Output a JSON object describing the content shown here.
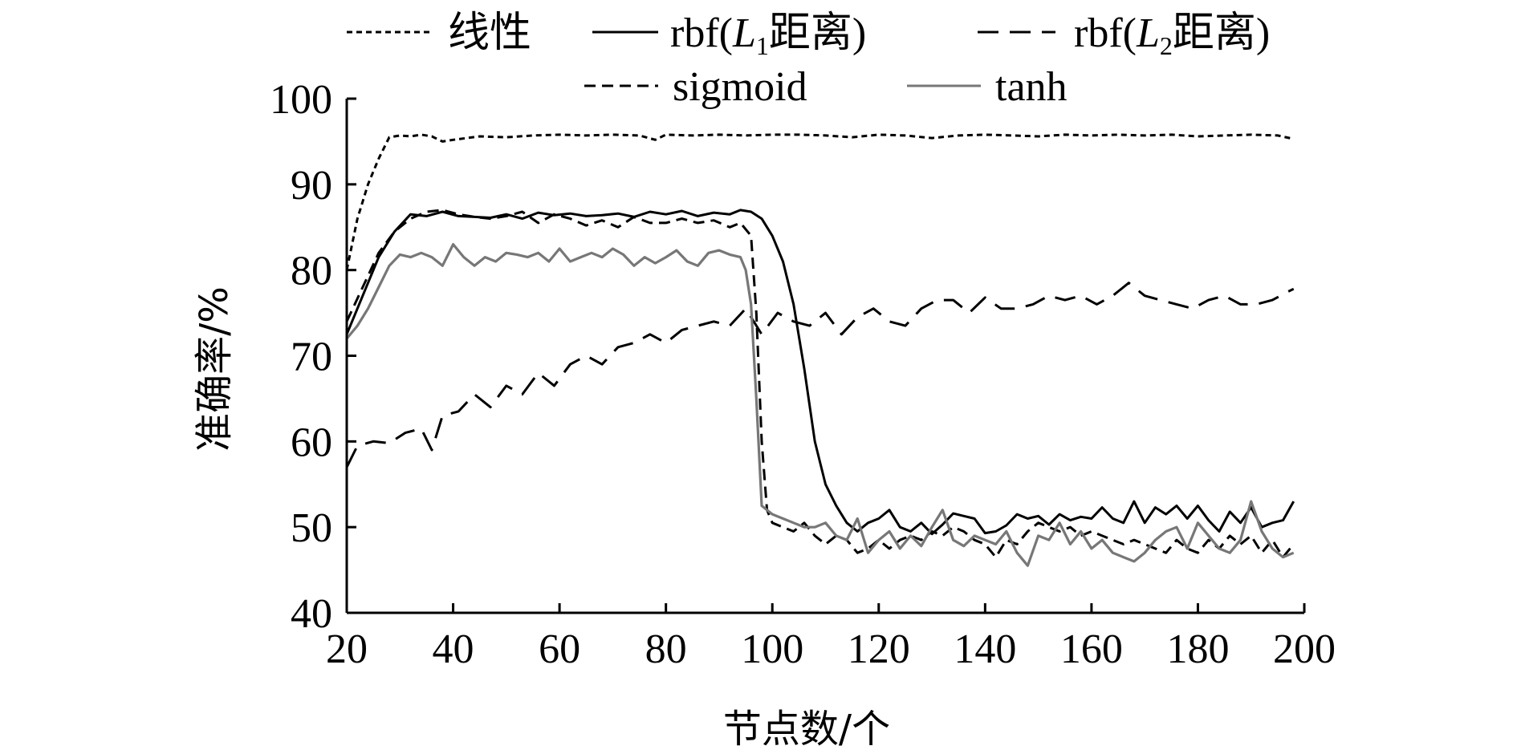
{
  "chart_data": {
    "type": "line",
    "xlabel": "节点数/个",
    "ylabel": "准确率/%",
    "xlim": [
      20,
      200
    ],
    "ylim": [
      40,
      100
    ],
    "xticks": [
      20,
      40,
      60,
      80,
      100,
      120,
      140,
      160,
      180,
      200
    ],
    "yticks": [
      40,
      50,
      60,
      70,
      80,
      90,
      100
    ],
    "grid": false,
    "legend_position": "top",
    "series": [
      {
        "name": "线性",
        "label_prefix": "",
        "label_var": "",
        "label_sub": "",
        "label_suffix": "",
        "style": "dotted",
        "color": "#000000",
        "x": [
          20,
          22,
          24,
          26,
          28,
          30,
          32,
          34,
          36,
          38,
          40,
          45,
          50,
          55,
          60,
          65,
          70,
          75,
          78,
          80,
          85,
          90,
          95,
          100,
          105,
          110,
          115,
          120,
          125,
          130,
          135,
          140,
          145,
          150,
          155,
          160,
          165,
          170,
          175,
          180,
          185,
          190,
          195,
          198
        ],
        "y": [
          80.0,
          86.0,
          90.0,
          93.0,
          95.5,
          95.7,
          95.6,
          95.8,
          95.6,
          95.0,
          95.2,
          95.6,
          95.5,
          95.7,
          95.8,
          95.7,
          95.8,
          95.7,
          95.2,
          95.8,
          95.7,
          95.8,
          95.7,
          95.8,
          95.8,
          95.7,
          95.5,
          95.8,
          95.7,
          95.4,
          95.7,
          95.8,
          95.7,
          95.6,
          95.8,
          95.7,
          95.8,
          95.7,
          95.8,
          95.6,
          95.7,
          95.8,
          95.7,
          95.3
        ]
      },
      {
        "name": "",
        "label_prefix": "rbf(",
        "label_var": "L",
        "label_sub": "1",
        "label_suffix": "距离)",
        "style": "solid",
        "color": "#000000",
        "x": [
          20,
          23,
          26,
          29,
          32,
          35,
          38,
          41,
          44,
          47,
          50,
          53,
          56,
          59,
          62,
          65,
          68,
          71,
          74,
          77,
          80,
          83,
          86,
          89,
          92,
          94,
          96,
          98,
          100,
          102,
          104,
          106,
          108,
          110,
          112,
          114,
          116,
          118,
          120,
          122,
          124,
          126,
          128,
          130,
          132,
          134,
          136,
          138,
          140,
          142,
          144,
          146,
          148,
          150,
          152,
          154,
          156,
          158,
          160,
          162,
          164,
          166,
          168,
          170,
          172,
          174,
          176,
          178,
          180,
          182,
          184,
          186,
          188,
          190,
          192,
          194,
          196,
          198
        ],
        "y": [
          72.5,
          77.0,
          81.5,
          84.5,
          86.5,
          86.3,
          86.8,
          86.3,
          86.2,
          86.1,
          86.5,
          86.0,
          86.7,
          86.4,
          86.6,
          86.3,
          86.4,
          86.6,
          86.2,
          86.8,
          86.5,
          86.9,
          86.3,
          86.7,
          86.5,
          87.0,
          86.8,
          86.0,
          84.0,
          81.0,
          76.0,
          68.5,
          60.0,
          55.0,
          52.5,
          50.5,
          49.5,
          50.5,
          51.0,
          52.0,
          50.0,
          49.5,
          50.5,
          49.2,
          50.3,
          51.6,
          51.3,
          51.0,
          49.3,
          49.5,
          50.2,
          51.5,
          51.0,
          51.3,
          50.3,
          51.5,
          50.8,
          51.2,
          51.0,
          52.3,
          51.0,
          50.5,
          53.0,
          50.5,
          52.3,
          51.5,
          52.5,
          51.0,
          52.5,
          50.8,
          49.5,
          51.8,
          50.5,
          52.3,
          50.0,
          50.5,
          50.8,
          53.0
        ]
      },
      {
        "name": "",
        "label_prefix": "rbf(",
        "label_var": "L",
        "label_sub": "2",
        "label_suffix": "距离)",
        "style": "dashed",
        "color": "#000000",
        "x": [
          20,
          22,
          25,
          28,
          31,
          34,
          36,
          38,
          41,
          44,
          47,
          50,
          53,
          56,
          59,
          62,
          65,
          68,
          71,
          74,
          77,
          80,
          83,
          86,
          89,
          92,
          95,
          98,
          101,
          104,
          107,
          110,
          113,
          116,
          119,
          122,
          125,
          128,
          131,
          134,
          137,
          140,
          143,
          146,
          149,
          152,
          155,
          158,
          161,
          164,
          167,
          170,
          173,
          176,
          179,
          182,
          185,
          188,
          191,
          194,
          197,
          198
        ],
        "y": [
          57.0,
          59.5,
          60.0,
          59.8,
          61.0,
          61.5,
          59.0,
          63.0,
          63.5,
          65.5,
          64.0,
          66.5,
          65.5,
          68.0,
          66.5,
          69.0,
          70.0,
          69.0,
          71.0,
          71.5,
          72.5,
          71.5,
          73.0,
          73.5,
          74.0,
          73.5,
          75.5,
          72.5,
          75.0,
          74.0,
          73.5,
          75.0,
          72.5,
          74.5,
          75.5,
          74.0,
          73.5,
          75.5,
          76.5,
          76.5,
          75.0,
          76.8,
          75.5,
          75.5,
          76.0,
          77.0,
          76.5,
          77.0,
          76.0,
          77.0,
          78.5,
          77.0,
          76.5,
          76.0,
          75.5,
          76.5,
          77.0,
          76.0,
          76.0,
          76.5,
          77.5,
          77.8
        ]
      },
      {
        "name": "sigmoid",
        "label_prefix": "",
        "label_var": "",
        "label_sub": "",
        "label_suffix": "",
        "style": "dashed-short",
        "color": "#000000",
        "x": [
          20,
          23,
          26,
          29,
          32,
          35,
          38,
          41,
          44,
          47,
          50,
          53,
          56,
          59,
          62,
          65,
          68,
          71,
          74,
          77,
          80,
          83,
          86,
          89,
          92,
          94,
          96,
          97,
          98,
          99,
          100,
          102,
          104,
          106,
          108,
          110,
          112,
          114,
          116,
          118,
          120,
          122,
          124,
          126,
          128,
          130,
          132,
          134,
          136,
          138,
          140,
          142,
          144,
          146,
          148,
          150,
          152,
          154,
          156,
          158,
          160,
          162,
          164,
          166,
          168,
          170,
          172,
          174,
          176,
          178,
          180,
          182,
          184,
          186,
          188,
          190,
          192,
          194,
          196,
          198
        ],
        "y": [
          74.0,
          78.0,
          82.0,
          84.5,
          86.0,
          86.8,
          87.0,
          86.5,
          86.2,
          86.0,
          86.3,
          86.8,
          85.5,
          86.5,
          86.0,
          85.2,
          85.8,
          85.0,
          86.2,
          85.5,
          85.5,
          86.0,
          85.5,
          85.8,
          85.0,
          85.5,
          84.0,
          75.0,
          60.0,
          52.0,
          50.5,
          50.0,
          49.5,
          50.5,
          49.0,
          48.0,
          49.0,
          48.5,
          47.0,
          47.5,
          48.5,
          47.5,
          48.5,
          49.0,
          48.5,
          49.5,
          49.0,
          50.0,
          49.5,
          48.5,
          48.0,
          46.5,
          48.5,
          48.0,
          49.5,
          50.5,
          50.0,
          49.5,
          50.0,
          49.0,
          49.5,
          49.0,
          48.5,
          48.0,
          48.5,
          48.0,
          47.5,
          47.0,
          48.5,
          47.5,
          47.0,
          48.5,
          47.5,
          49.0,
          48.0,
          49.0,
          47.0,
          48.5,
          46.5,
          48.0
        ]
      },
      {
        "name": "tanh",
        "label_prefix": "",
        "label_var": "",
        "label_sub": "",
        "label_suffix": "",
        "style": "solid",
        "color": "#777777",
        "x": [
          20,
          22,
          24,
          26,
          28,
          30,
          32,
          34,
          36,
          38,
          40,
          42,
          44,
          46,
          48,
          50,
          52,
          54,
          56,
          58,
          60,
          62,
          64,
          66,
          68,
          70,
          72,
          74,
          76,
          78,
          80,
          82,
          84,
          86,
          88,
          90,
          92,
          94,
          95,
          96,
          97,
          98,
          100,
          102,
          104,
          106,
          108,
          110,
          112,
          114,
          116,
          118,
          120,
          122,
          124,
          126,
          128,
          130,
          132,
          134,
          136,
          138,
          140,
          142,
          144,
          146,
          148,
          150,
          152,
          154,
          156,
          158,
          160,
          162,
          164,
          166,
          168,
          170,
          172,
          174,
          176,
          178,
          180,
          182,
          184,
          186,
          188,
          190,
          192,
          194,
          196,
          198
        ],
        "y": [
          72.0,
          73.5,
          75.5,
          78.0,
          80.5,
          81.8,
          81.5,
          82.0,
          81.5,
          80.5,
          83.0,
          81.5,
          80.5,
          81.5,
          81.0,
          82.0,
          81.8,
          81.5,
          82.0,
          81.0,
          82.5,
          81.0,
          81.5,
          82.0,
          81.5,
          82.5,
          81.8,
          80.5,
          81.5,
          80.8,
          81.5,
          82.3,
          81.0,
          80.5,
          82.0,
          82.3,
          81.8,
          81.5,
          80.0,
          76.0,
          65.0,
          52.5,
          51.5,
          51.0,
          50.5,
          50.0,
          50.0,
          50.5,
          49.0,
          48.5,
          51.0,
          47.0,
          48.5,
          49.5,
          47.5,
          49.0,
          47.8,
          50.0,
          52.0,
          48.5,
          47.8,
          49.0,
          48.5,
          48.0,
          49.5,
          47.0,
          45.5,
          49.0,
          48.5,
          50.5,
          48.0,
          49.5,
          47.5,
          48.5,
          47.0,
          46.5,
          46.0,
          47.0,
          48.5,
          49.5,
          50.0,
          47.5,
          50.5,
          49.0,
          47.5,
          47.0,
          48.5,
          53.0,
          49.5,
          47.5,
          46.5,
          47.0
        ]
      }
    ]
  }
}
